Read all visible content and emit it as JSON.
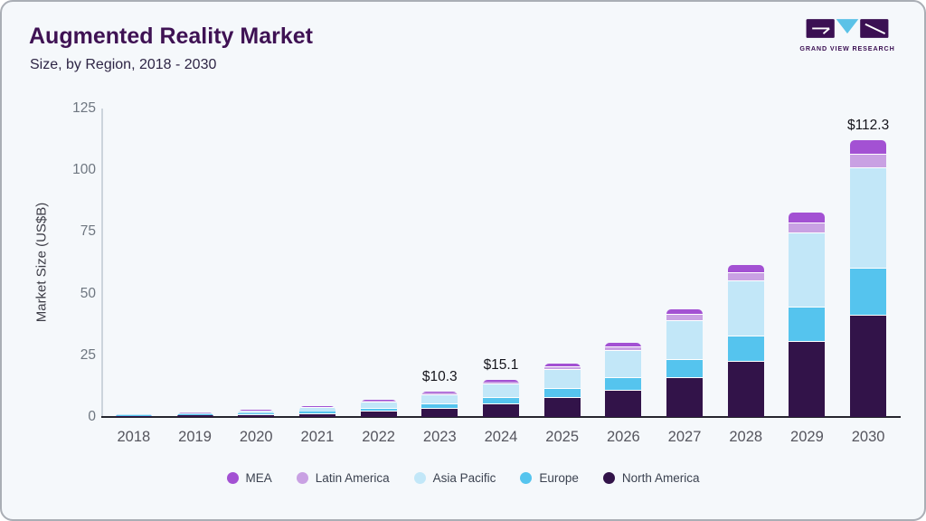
{
  "header": {
    "title": "Augmented Reality Market",
    "subtitle": "Size, by Region, 2018 - 2030",
    "logo_text": "GRAND VIEW RESEARCH"
  },
  "colors": {
    "brand_purple": "#3f1254",
    "card_background": "#f5f8fb",
    "x_axis_line": "#26262e",
    "y_axis_line": "#ccd4dc"
  },
  "chart_data": {
    "type": "bar",
    "stacked": true,
    "title": "Augmented Reality Market Size, by Region, 2018 - 2030",
    "xlabel": "",
    "ylabel": "Market Size (US$B)",
    "ylim": [
      0,
      125
    ],
    "yticks": [
      0,
      25,
      50,
      75,
      100,
      125
    ],
    "grid": false,
    "legend_position": "bottom",
    "categories": [
      "2018",
      "2019",
      "2020",
      "2021",
      "2022",
      "2023",
      "2024",
      "2025",
      "2026",
      "2027",
      "2028",
      "2029",
      "2030"
    ],
    "series": [
      {
        "name": "MEA",
        "color": "#a351d3",
        "values": [
          0.06,
          0.09,
          0.14,
          0.22,
          0.33,
          0.5,
          0.74,
          1.05,
          1.48,
          2.15,
          3.0,
          4.07,
          5.5
        ]
      },
      {
        "name": "Latin America",
        "color": "#c9a1e3",
        "values": [
          0.06,
          0.09,
          0.14,
          0.23,
          0.35,
          0.53,
          0.78,
          1.11,
          1.56,
          2.26,
          3.17,
          4.28,
          5.8
        ]
      },
      {
        "name": "Asia Pacific",
        "color": "#c2e7f8",
        "values": [
          0.43,
          0.65,
          1.01,
          1.59,
          2.45,
          3.71,
          5.45,
          7.75,
          10.9,
          15.8,
          22.18,
          29.94,
          40.5
        ]
      },
      {
        "name": "Europe",
        "color": "#55c4ee",
        "values": [
          0.2,
          0.3,
          0.47,
          0.74,
          1.15,
          1.74,
          2.56,
          3.64,
          5.11,
          7.41,
          10.4,
          14.05,
          19.0
        ]
      },
      {
        "name": "North America",
        "color": "#321349",
        "values": [
          0.45,
          0.67,
          1.03,
          1.63,
          2.51,
          3.82,
          5.57,
          7.95,
          11.15,
          16.18,
          22.75,
          30.66,
          41.5
        ]
      }
    ],
    "annotations": [
      {
        "category": "2023",
        "text": "$10.3"
      },
      {
        "category": "2024",
        "text": "$15.1"
      },
      {
        "category": "2030",
        "text": "$112.3"
      }
    ]
  }
}
